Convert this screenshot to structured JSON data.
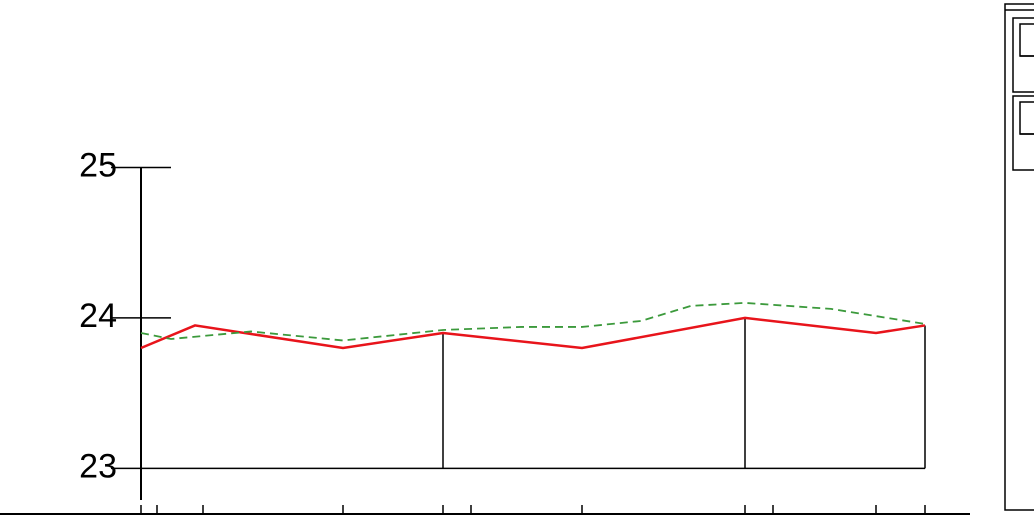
{
  "chart_data": {
    "type": "line",
    "ylim": [
      22.7,
      26.1
    ],
    "yticks": [
      23,
      24,
      25
    ],
    "xlim": [
      -141,
      829
    ],
    "xticks": [
      0,
      16,
      62,
      202,
      302,
      330,
      441,
      604,
      632,
      735,
      784
    ],
    "series": [
      {
        "color": "#e8141b",
        "dashed": false,
        "x": [
          0,
          54,
          202,
          302,
          441,
          604,
          735,
          784
        ],
        "values": [
          23.8,
          23.95,
          23.8,
          23.9,
          23.8,
          24.0,
          23.9,
          23.95
        ]
      },
      {
        "color": "#3c9a3c",
        "dashed": true,
        "x": [
          0,
          30,
          110,
          202,
          302,
          380,
          441,
          500,
          550,
          604,
          690,
          784
        ],
        "values": [
          23.9,
          23.86,
          23.91,
          23.85,
          23.92,
          23.94,
          23.94,
          23.98,
          24.08,
          24.1,
          24.06,
          23.96
        ]
      }
    ]
  }
}
